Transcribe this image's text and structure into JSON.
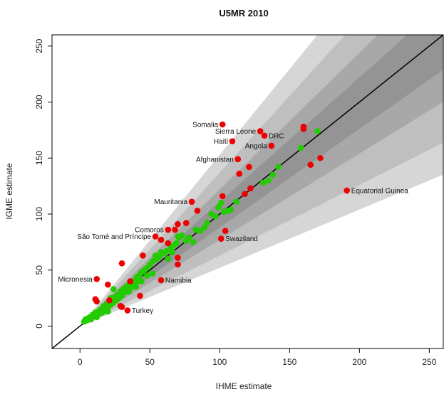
{
  "chart_data": {
    "type": "scatter",
    "title": "U5MR 2010",
    "xlabel": "IHME estimate",
    "ylabel": "IGME estimate",
    "xlim": [
      -20,
      260
    ],
    "ylim": [
      -20,
      260
    ],
    "xticks": [
      0,
      50,
      100,
      150,
      200,
      250
    ],
    "yticks": [
      0,
      50,
      100,
      150,
      200,
      250
    ],
    "reference_line": "y = x",
    "bands": [
      {
        "low_slope": 0.52,
        "high_slope": 1.53,
        "color": "#d6d6d6"
      },
      {
        "low_slope": 0.63,
        "high_slope": 1.37,
        "color": "#bfbfbf"
      },
      {
        "low_slope": 0.77,
        "high_slope": 1.22,
        "color": "#a8a8a8"
      },
      {
        "low_slope": 0.88,
        "high_slope": 1.11,
        "color": "#949494"
      }
    ],
    "colors": {
      "inside": "#22cc00",
      "outside": "#ee0000",
      "line": "#000000"
    },
    "series": [
      {
        "status": "inside",
        "points": [
          [
            3,
            4
          ],
          [
            4,
            6
          ],
          [
            5,
            5
          ],
          [
            6,
            7
          ],
          [
            7,
            8
          ],
          [
            8,
            6
          ],
          [
            9,
            10
          ],
          [
            10,
            9
          ],
          [
            11,
            12
          ],
          [
            12,
            8
          ],
          [
            13,
            13
          ],
          [
            14,
            11
          ],
          [
            15,
            15
          ],
          [
            16,
            12
          ],
          [
            17,
            18
          ],
          [
            18,
            14
          ],
          [
            19,
            20
          ],
          [
            20,
            17
          ],
          [
            21,
            22
          ],
          [
            22,
            19
          ],
          [
            23,
            24
          ],
          [
            24,
            21
          ],
          [
            25,
            26
          ],
          [
            26,
            23
          ],
          [
            27,
            28
          ],
          [
            28,
            25
          ],
          [
            29,
            31
          ],
          [
            30,
            27
          ],
          [
            31,
            33
          ],
          [
            32,
            30
          ],
          [
            33,
            35
          ],
          [
            34,
            32
          ],
          [
            35,
            37
          ],
          [
            36,
            34
          ],
          [
            37,
            38
          ],
          [
            38,
            36
          ],
          [
            39,
            41
          ],
          [
            40,
            39
          ],
          [
            41,
            44
          ],
          [
            42,
            42
          ],
          [
            43,
            46
          ],
          [
            44,
            48
          ],
          [
            46,
            50
          ],
          [
            48,
            52
          ],
          [
            50,
            55
          ],
          [
            52,
            58
          ],
          [
            55,
            60
          ],
          [
            57,
            62
          ],
          [
            60,
            65
          ],
          [
            62,
            67
          ],
          [
            65,
            70
          ],
          [
            67,
            72
          ],
          [
            69,
            74
          ],
          [
            71,
            79
          ],
          [
            73,
            81
          ],
          [
            76,
            76
          ],
          [
            78,
            79
          ],
          [
            81,
            75
          ],
          [
            83,
            86
          ],
          [
            86,
            85
          ],
          [
            89,
            88
          ],
          [
            91,
            92
          ],
          [
            94,
            100
          ],
          [
            97,
            98
          ],
          [
            99,
            106
          ],
          [
            101,
            110
          ],
          [
            103,
            102
          ],
          [
            106,
            103
          ],
          [
            108,
            104
          ],
          [
            112,
            111
          ],
          [
            131,
            128
          ],
          [
            135,
            130
          ],
          [
            138,
            135
          ],
          [
            142,
            142
          ],
          [
            158,
            159
          ],
          [
            170,
            174
          ],
          [
            20,
            13
          ],
          [
            22,
            25
          ],
          [
            24,
            33
          ],
          [
            30,
            30
          ],
          [
            35,
            31
          ],
          [
            40,
            35
          ],
          [
            44,
            40
          ],
          [
            48,
            45
          ],
          [
            52,
            47
          ],
          [
            54,
            63
          ],
          [
            58,
            66
          ],
          [
            63,
            60
          ],
          [
            66,
            66
          ],
          [
            70,
            80
          ]
        ]
      },
      {
        "status": "outside",
        "points": [
          [
            102,
            180
          ],
          [
            129,
            174
          ],
          [
            132,
            170
          ],
          [
            109,
            165
          ],
          [
            137,
            161
          ],
          [
            113,
            149
          ],
          [
            160,
            178
          ],
          [
            172,
            150
          ],
          [
            165,
            144
          ],
          [
            121,
            142
          ],
          [
            114,
            136
          ],
          [
            122,
            123
          ],
          [
            118,
            118
          ],
          [
            102,
            116
          ],
          [
            80,
            111
          ],
          [
            84,
            103
          ],
          [
            70,
            91
          ],
          [
            76,
            92
          ],
          [
            68,
            86
          ],
          [
            104,
            85
          ],
          [
            63,
            86
          ],
          [
            54,
            80
          ],
          [
            58,
            77
          ],
          [
            101,
            78
          ],
          [
            63,
            74
          ],
          [
            45,
            63
          ],
          [
            30,
            56
          ],
          [
            70,
            61
          ],
          [
            58,
            41
          ],
          [
            43,
            27
          ],
          [
            12,
            42
          ],
          [
            11,
            24
          ],
          [
            12,
            22
          ],
          [
            20,
            37
          ],
          [
            21,
            23
          ],
          [
            29,
            18
          ],
          [
            30,
            17
          ],
          [
            34,
            14
          ],
          [
            36,
            40
          ],
          [
            70,
            55
          ],
          [
            191,
            121
          ],
          [
            160,
            176
          ]
        ]
      }
    ],
    "annotations": [
      {
        "text": "Somalia",
        "x": 102,
        "y": 180,
        "side": "left"
      },
      {
        "text": "Sierra Leone",
        "x": 129,
        "y": 174,
        "side": "left"
      },
      {
        "text": "DRC",
        "x": 132,
        "y": 170,
        "side": "right"
      },
      {
        "text": "Haiti",
        "x": 109,
        "y": 165,
        "side": "left"
      },
      {
        "text": "Angola",
        "x": 137,
        "y": 161,
        "side": "left"
      },
      {
        "text": "Afghanistan",
        "x": 113,
        "y": 149,
        "side": "left"
      },
      {
        "text": "Mauritania",
        "x": 80,
        "y": 111,
        "side": "left"
      },
      {
        "text": "Equatorial Guinea",
        "x": 191,
        "y": 121,
        "side": "right"
      },
      {
        "text": "Comoros",
        "x": 63,
        "y": 86,
        "side": "left"
      },
      {
        "text": "São Tomé and Príncipe",
        "x": 54,
        "y": 80,
        "side": "left"
      },
      {
        "text": "Swaziland",
        "x": 101,
        "y": 78,
        "side": "right"
      },
      {
        "text": "Micronesia",
        "x": 12,
        "y": 42,
        "side": "left"
      },
      {
        "text": "Namibia",
        "x": 58,
        "y": 41,
        "side": "right"
      },
      {
        "text": "Turkey",
        "x": 34,
        "y": 14,
        "side": "right"
      }
    ]
  }
}
